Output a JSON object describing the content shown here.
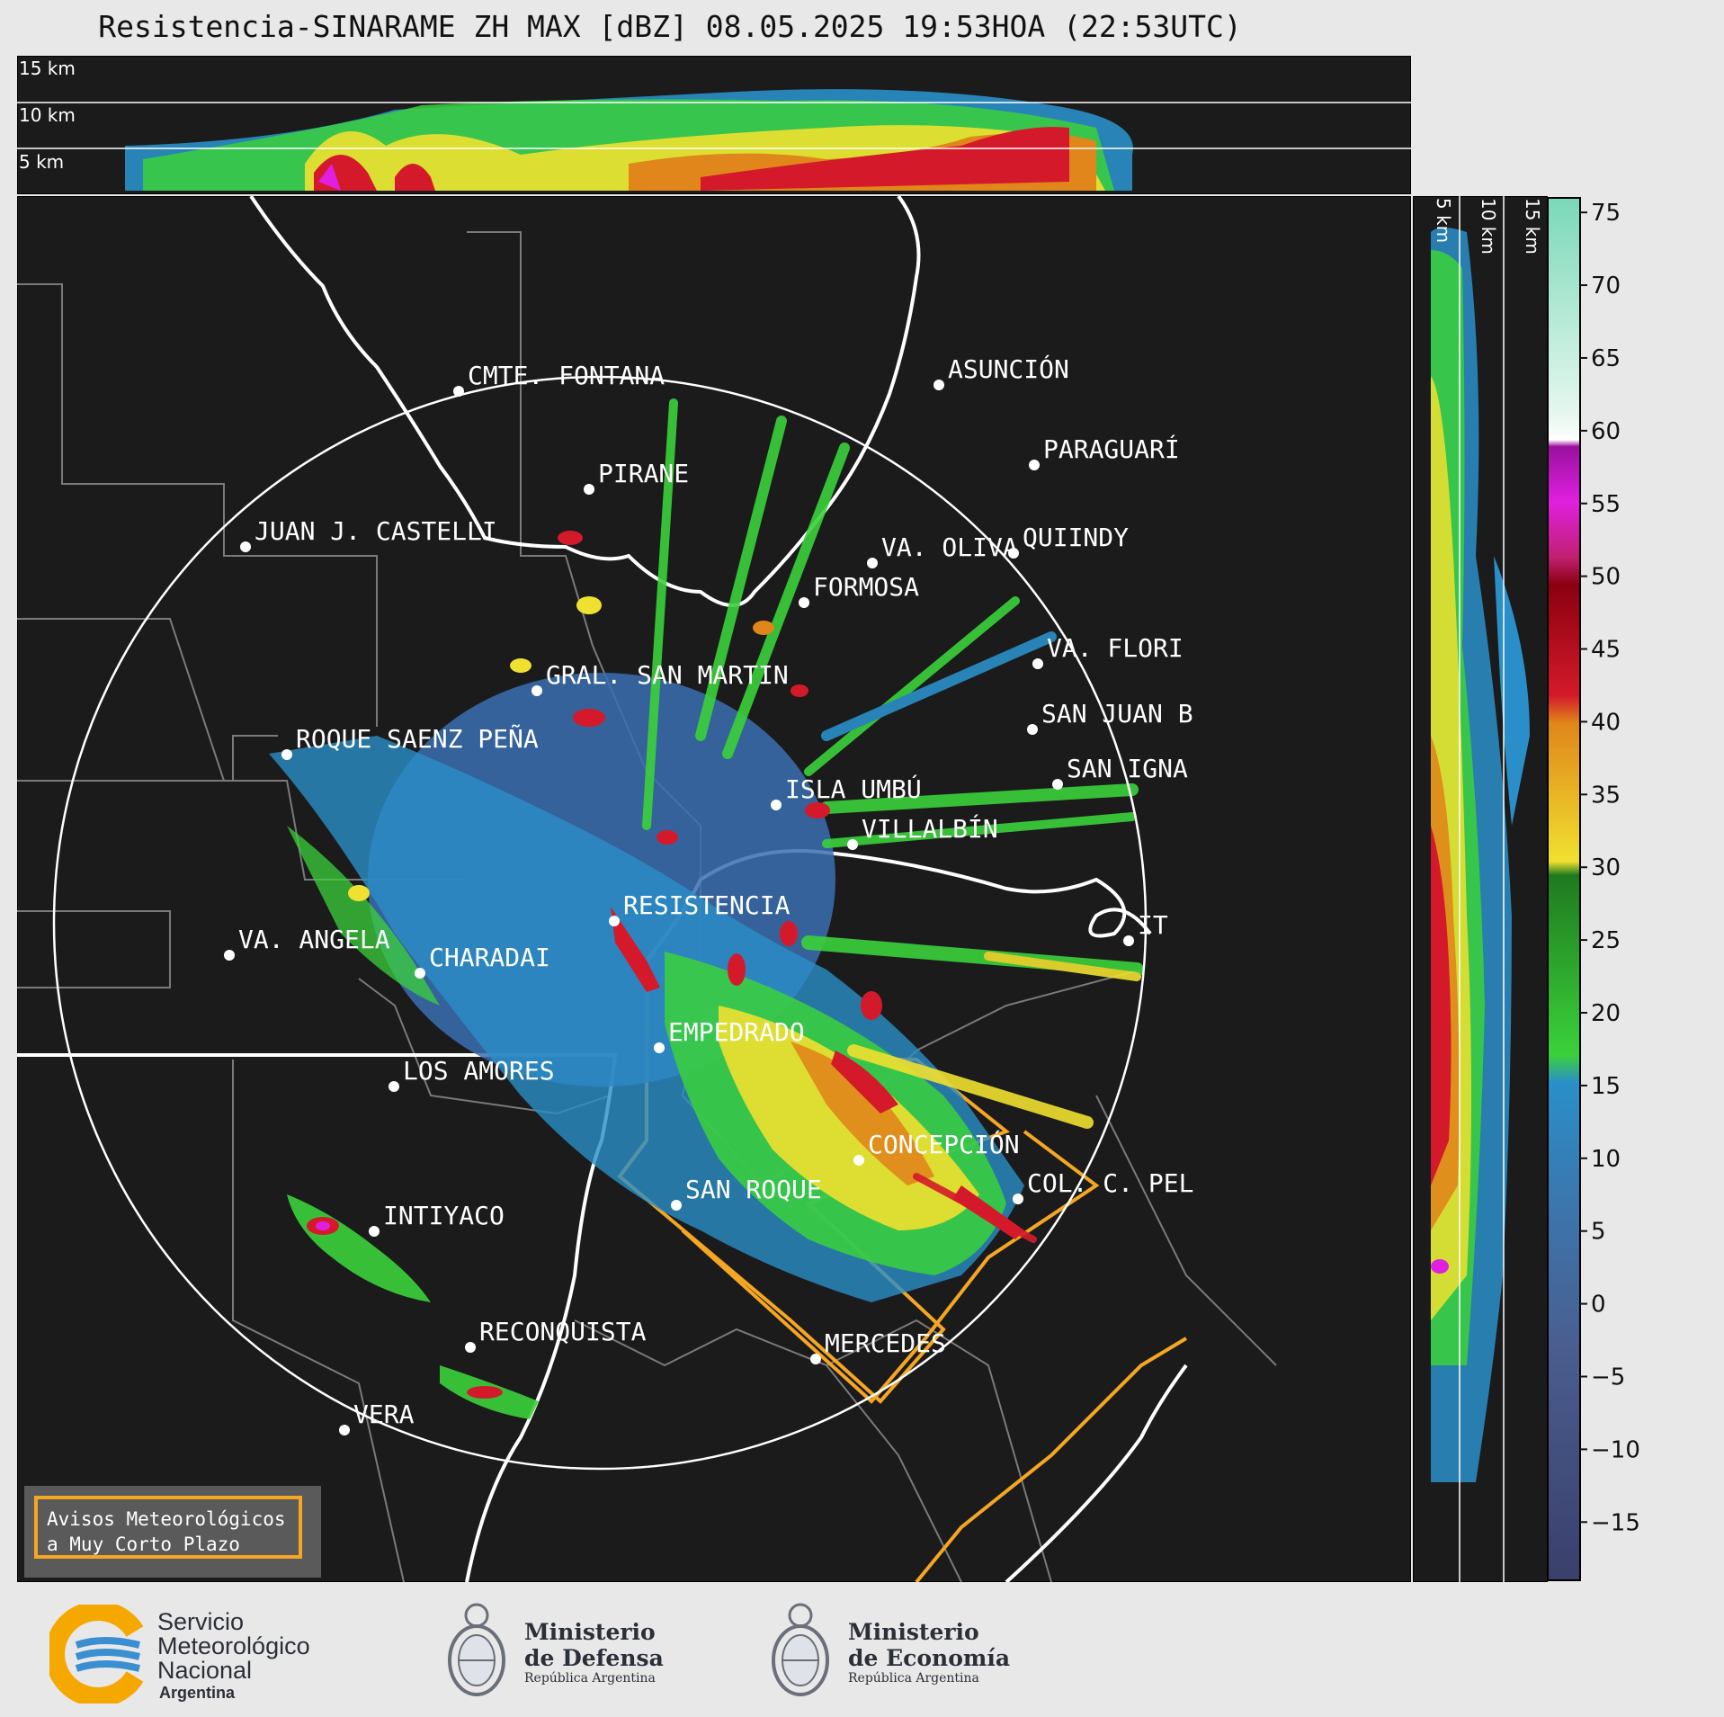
{
  "title": "Resistencia-SINARAME ZH MAX [dBZ] 08.05.2025 19:53HOA (22:53UTC)",
  "top_strip": {
    "height_labels": [
      "15 km",
      "10 km",
      "5 km"
    ]
  },
  "side_strip": {
    "height_labels": [
      "5 km",
      "10 km",
      "15 km"
    ]
  },
  "colorbar": {
    "ticks": [
      "75",
      "70",
      "65",
      "60",
      "55",
      "50",
      "45",
      "40",
      "35",
      "30",
      "25",
      "20",
      "15",
      "10",
      "5",
      "0",
      "−5",
      "−10",
      "−15"
    ],
    "range": [
      -19,
      76
    ],
    "colors": {
      "low": "#3a3f6b",
      "blue": "#2a8fc8",
      "green": "#3bd13b",
      "yellow": "#f0e030",
      "orange": "#e0861a",
      "red": "#d41a2a",
      "magenta": "#e020e0",
      "white": "#ffffff",
      "teal": "#8ee0c0"
    }
  },
  "cities": [
    {
      "name": "CMTE. FONTANA",
      "dx": 491,
      "dy": 217
    },
    {
      "name": "ASUNCIÓN",
      "dx": 1025,
      "dy": 210
    },
    {
      "name": "PARAGUARÍ",
      "dx": 1131,
      "dy": 299
    },
    {
      "name": "PIRANE",
      "dx": 636,
      "dy": 326
    },
    {
      "name": "JUAN J. CASTELLI",
      "dx": 254,
      "dy": 390
    },
    {
      "name": "VA. OLIVA",
      "dx": 951,
      "dy": 408
    },
    {
      "name": "QUIINDY",
      "dx": 1108,
      "dy": 397
    },
    {
      "name": "FORMOSA",
      "dx": 875,
      "dy": 452
    },
    {
      "name": "VA. FLORI",
      "dx": 1135,
      "dy": 520
    },
    {
      "name": "GRAL. SAN MARTIN",
      "dx": 578,
      "dy": 550
    },
    {
      "name": "SAN JUAN B",
      "dx": 1129,
      "dy": 593
    },
    {
      "name": "ROQUE SAENZ PEÑA",
      "dx": 300,
      "dy": 621
    },
    {
      "name": "SAN IGNA",
      "dx": 1157,
      "dy": 654
    },
    {
      "name": "ISLA UMBÚ",
      "dx": 844,
      "dy": 677
    },
    {
      "name": "VILLALBÍN",
      "dx": 929,
      "dy": 721
    },
    {
      "name": "RESISTENCIA",
      "dx": 664,
      "dy": 806
    },
    {
      "name": "VA. ANGELA",
      "dx": 236,
      "dy": 844
    },
    {
      "name": "CHARADAI",
      "dx": 448,
      "dy": 864
    },
    {
      "name": "IT",
      "dx": 1236,
      "dy": 828
    },
    {
      "name": "EMPEDRADO",
      "dx": 714,
      "dy": 947
    },
    {
      "name": "LOS AMORES",
      "dx": 419,
      "dy": 990
    },
    {
      "name": "CONCEPCIÓN",
      "dx": 936,
      "dy": 1072
    },
    {
      "name": "COL. C. PEL",
      "dx": 1113,
      "dy": 1115
    },
    {
      "name": "SAN ROQUE",
      "dx": 733,
      "dy": 1122
    },
    {
      "name": "INTIYACO",
      "dx": 397,
      "dy": 1151
    },
    {
      "name": "RECONQUISTA",
      "dx": 504,
      "dy": 1280
    },
    {
      "name": "MERCEDES",
      "dx": 888,
      "dy": 1293
    },
    {
      "name": "VERA",
      "dx": 364,
      "dy": 1372
    }
  ],
  "warning_box": {
    "line1": "Avisos Meteorológicos",
    "line2": "a Muy Corto Plazo"
  },
  "footer": {
    "smn": {
      "line1": "Servicio",
      "line2": "Meteorológico",
      "line3": "Nacional",
      "line4": "Argentina"
    },
    "defensa": {
      "line1": "Ministerio",
      "line2": "de Defensa",
      "line3": "República Argentina"
    },
    "economia": {
      "line1": "Ministerio",
      "line2": "de Economía",
      "line3": "República Argentina"
    }
  }
}
